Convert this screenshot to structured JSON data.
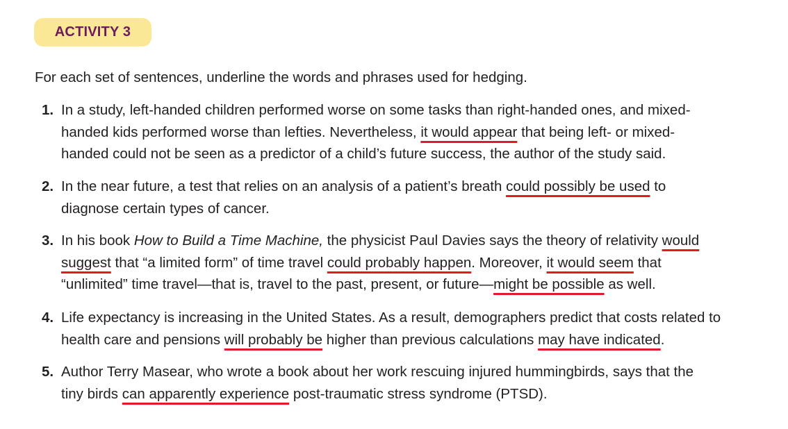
{
  "activity": {
    "label": "ACTIVITY 3",
    "instruction": "For each set of sentences, underline the words and phrases used for hedging."
  },
  "items": [
    {
      "number": "1.",
      "lines": [
        [
          "In a study, left-handed children performed worse on some tasks than right-handed ones, and mixed-"
        ],
        [
          "handed kids performed worse than lefties. Nevertheless, ",
          "it would appear",
          " that being left- or mixed-"
        ],
        [
          "handed could not be seen as a predictor of a child’s future success, the author of the study said."
        ]
      ]
    },
    {
      "number": "2.",
      "lines": [
        [
          "In the near future, a test that relies on an analysis of a patient’s breath ",
          "could possibly be used",
          " to"
        ],
        [
          "diagnose certain types of cancer."
        ]
      ]
    },
    {
      "number": "3.",
      "lines": [
        [
          "In his book ",
          "How to Build a Time Machine,",
          " the physicist Paul Davies says the theory of relativity ",
          "would"
        ],
        [
          "suggest",
          " that “a limited form” of time travel ",
          "could probably happen",
          ". Moreover, ",
          "it would seem",
          " that"
        ],
        [
          "“unlimited” time travel—that is, travel to the past, present, or future—",
          "might be possible",
          " as well."
        ]
      ]
    },
    {
      "number": "4.",
      "lines": [
        [
          "Life expectancy is increasing in the United States. As a result, demographers predict that costs related to"
        ],
        [
          "health care and pensions ",
          "will probably be",
          " higher than previous calculations ",
          "may have indicated",
          "."
        ]
      ]
    },
    {
      "number": "5.",
      "lines": [
        [
          "Author Terry Masear, who wrote a book about her work rescuing injured hummingbirds, says that the"
        ],
        [
          "tiny birds ",
          "can apparently experience",
          " post-traumatic stress syndrome (PTSD)."
        ]
      ]
    }
  ]
}
